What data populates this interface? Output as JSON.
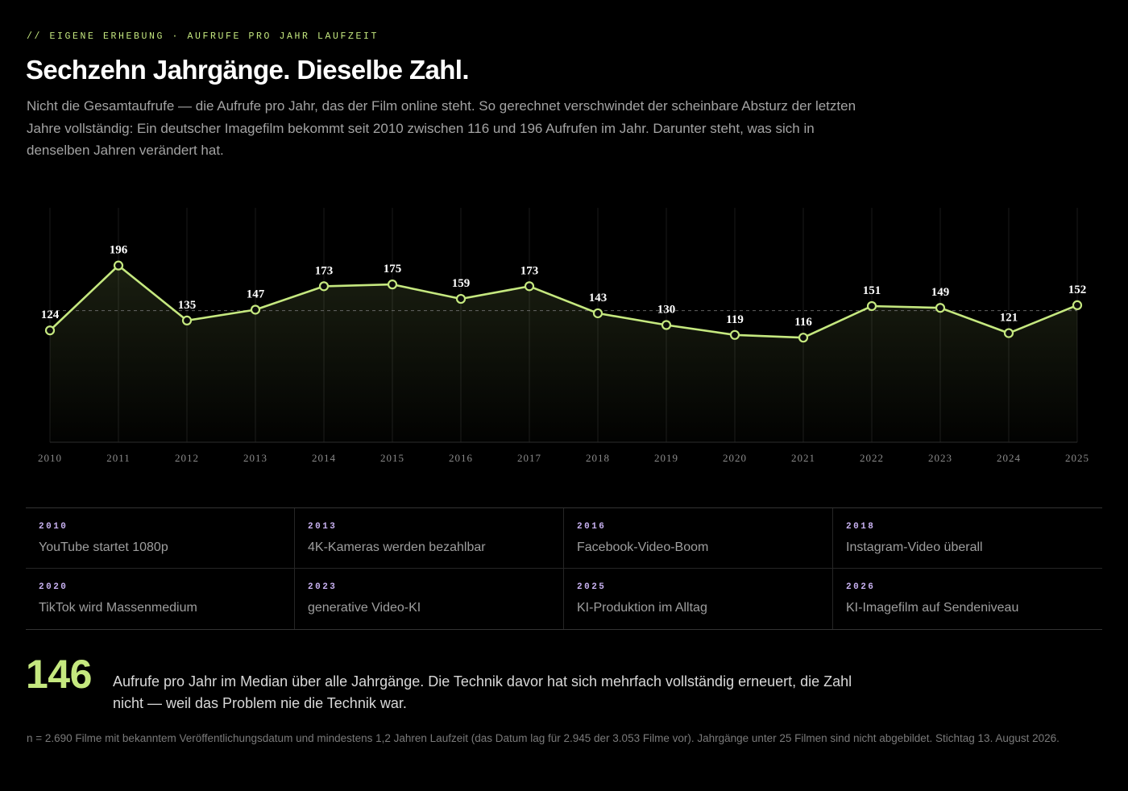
{
  "header": {
    "eyebrow": "// EIGENE ERHEBUNG · AUFRUFE PRO JAHR LAUFZEIT",
    "title": "Sechzehn Jahrgänge. Dieselbe Zahl.",
    "lead": "Nicht die Gesamtaufrufe — die Aufrufe pro Jahr, das der Film online steht. So gerechnet verschwindet der scheinbare Absturz der letzten Jahre vollständig: Ein deutscher Imagefilm bekommt seit 2010 zwischen 116 und 196 Aufrufen im Jahr. Darunter steht, was sich in denselben Jahren verändert hat."
  },
  "colors": {
    "accent": "#c5e87f",
    "event_year": "#c9b2f2",
    "background": "#000000"
  },
  "chart_data": {
    "type": "line",
    "x": [
      "2010",
      "2011",
      "2012",
      "2013",
      "2014",
      "2015",
      "2016",
      "2017",
      "2018",
      "2019",
      "2020",
      "2021",
      "2022",
      "2023",
      "2024",
      "2025"
    ],
    "values": [
      124,
      196,
      135,
      147,
      173,
      175,
      159,
      173,
      143,
      130,
      119,
      116,
      151,
      149,
      121,
      152
    ],
    "reference_line": 146,
    "ylim": [
      0,
      260
    ],
    "grid": "vertical",
    "area_fill": true,
    "data_labels": true
  },
  "events": [
    {
      "year": "2010",
      "label": "YouTube startet 1080p"
    },
    {
      "year": "2013",
      "label": "4K-Kameras werden bezahlbar"
    },
    {
      "year": "2016",
      "label": "Facebook-Video-Boom"
    },
    {
      "year": "2018",
      "label": "Instagram-Video überall"
    },
    {
      "year": "2020",
      "label": "TikTok wird Massenmedium"
    },
    {
      "year": "2023",
      "label": "generative Video-KI"
    },
    {
      "year": "2025",
      "label": "KI-Produktion im Alltag"
    },
    {
      "year": "2026",
      "label": "KI-Imagefilm auf Sendeniveau"
    }
  ],
  "summary": {
    "value": "146",
    "text": "Aufrufe pro Jahr im Median über alle Jahrgänge. Die Technik davor hat sich mehrfach vollständig erneuert, die Zahl nicht — weil das Problem nie die Technik war."
  },
  "footnote": "n = 2.690 Filme mit bekanntem Veröffentlichungsdatum und mindestens 1,2 Jahren Laufzeit (das Datum lag für 2.945 der 3.053 Filme vor). Jahrgänge unter 25 Filmen sind nicht abgebildet. Stichtag 13. August 2026."
}
